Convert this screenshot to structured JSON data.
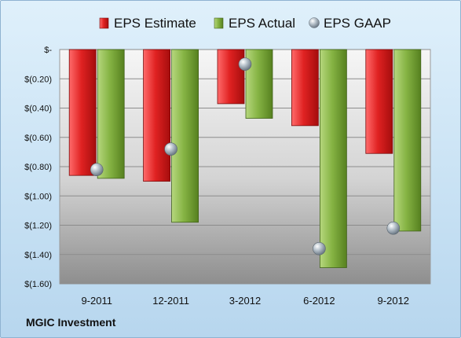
{
  "chart_data": {
    "type": "bar",
    "categories": [
      "9-2011",
      "12-2011",
      "3-2012",
      "6-2012",
      "9-2012"
    ],
    "series": [
      {
        "name": "EPS Estimate",
        "kind": "bar",
        "color": "#d42020",
        "values": [
          -0.86,
          -0.9,
          -0.37,
          -0.52,
          -0.71
        ]
      },
      {
        "name": "EPS Actual",
        "kind": "bar",
        "color": "#7aa83a",
        "values": [
          -0.88,
          -1.18,
          -0.47,
          -1.49,
          -1.24
        ]
      },
      {
        "name": "EPS GAAP",
        "kind": "marker",
        "color": "#9aa8b4",
        "values": [
          -0.82,
          -0.68,
          -0.1,
          -1.36,
          -1.22
        ]
      }
    ],
    "ylim": [
      -1.6,
      0
    ],
    "yticks": [
      0,
      -0.2,
      -0.4,
      -0.6,
      -0.8,
      -1.0,
      -1.2,
      -1.4,
      -1.6
    ],
    "ytick_labels": [
      "$-",
      "$(0.20)",
      "$(0.40)",
      "$(0.60)",
      "$(0.80)",
      "$(1.00)",
      "$(1.20)",
      "$(1.40)",
      "$(1.60)"
    ],
    "grid": true,
    "legend": "top"
  },
  "company": "MGIC Investment"
}
